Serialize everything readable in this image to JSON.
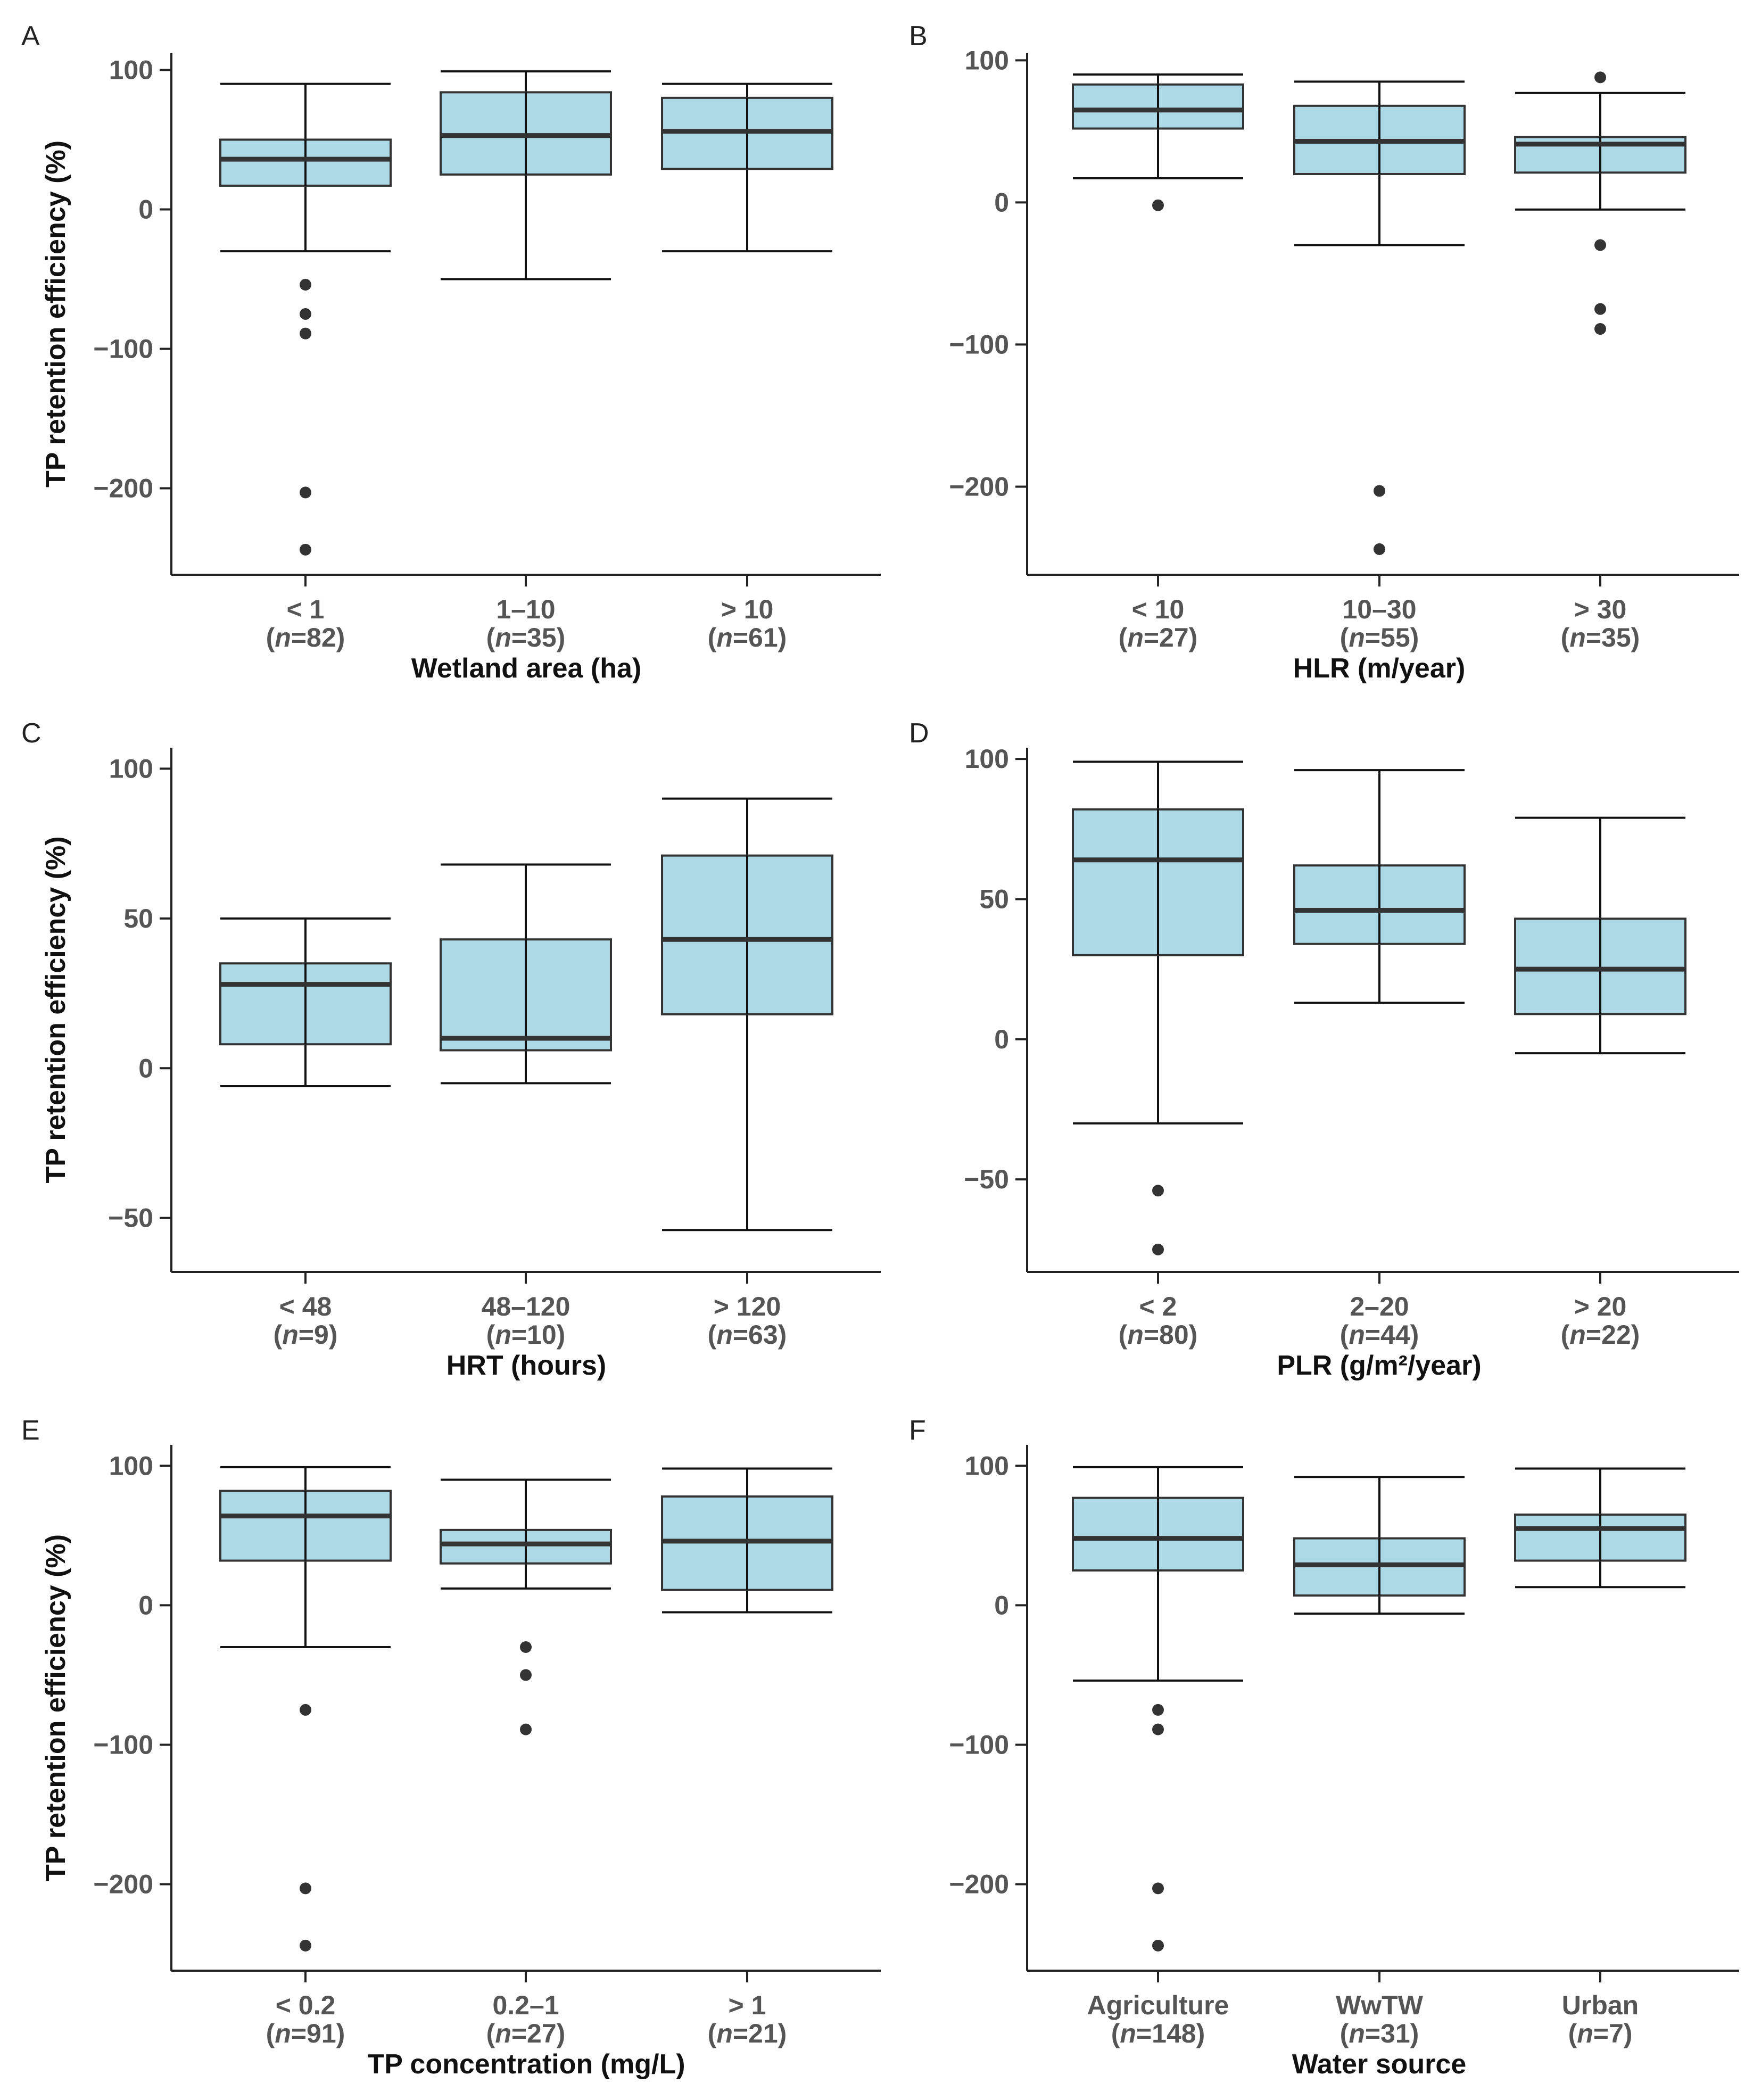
{
  "figure": {
    "y_axis_title": "TP retention efficiency (%)",
    "colors": {
      "box_fill": "#add8e6",
      "box_edge": "#333333",
      "point": "#333333"
    }
  },
  "chart_data": [
    {
      "panel": "A",
      "type": "box",
      "xlabel": "Wetland area (ha)",
      "ylabel": "TP retention efficiency (%)",
      "ylim": [
        -262,
        112
      ],
      "yticks": [
        100,
        0,
        -100,
        -200
      ],
      "categories": [
        {
          "label": "< 1",
          "n": "82",
          "whislo": -30,
          "q1": 17,
          "median": 36,
          "q3": 50,
          "whishi": 90,
          "fliers": [
            -54,
            -75,
            -89,
            -203,
            -244
          ]
        },
        {
          "label": "1–10",
          "n": "35",
          "whislo": -50,
          "q1": 25,
          "median": 53,
          "q3": 84,
          "whishi": 99,
          "fliers": []
        },
        {
          "label": "> 10",
          "n": "61",
          "whislo": -30,
          "q1": 29,
          "median": 56,
          "q3": 80,
          "whishi": 90,
          "fliers": []
        }
      ]
    },
    {
      "panel": "B",
      "type": "box",
      "xlabel": "HLR (m/year)",
      "ylabel": "",
      "ylim": [
        -262,
        105
      ],
      "yticks": [
        100,
        0,
        -100,
        -200
      ],
      "categories": [
        {
          "label": "< 10",
          "n": "27",
          "whislo": 17,
          "q1": 52,
          "median": 65,
          "q3": 83,
          "whishi": 90,
          "fliers": [
            -2
          ]
        },
        {
          "label": "10–30",
          "n": "55",
          "whislo": -30,
          "q1": 20,
          "median": 43,
          "q3": 68,
          "whishi": 85,
          "fliers": [
            -203,
            -244
          ]
        },
        {
          "label": "> 30",
          "n": "35",
          "whislo": -5,
          "q1": 21,
          "median": 41,
          "q3": 46,
          "whishi": 77,
          "fliers": [
            88,
            -30,
            -75,
            -89
          ]
        }
      ]
    },
    {
      "panel": "C",
      "type": "box",
      "xlabel": "HRT (hours)",
      "ylabel": "TP retention efficiency (%)",
      "ylim": [
        -68,
        107
      ],
      "yticks": [
        100,
        50,
        0,
        -50
      ],
      "categories": [
        {
          "label": "< 48",
          "n": "9",
          "whislo": -6,
          "q1": 8,
          "median": 28,
          "q3": 35,
          "whishi": 50,
          "fliers": []
        },
        {
          "label": "48–120",
          "n": "10",
          "whislo": -5,
          "q1": 6,
          "median": 10,
          "q3": 43,
          "whishi": 68,
          "fliers": []
        },
        {
          "label": "> 120",
          "n": "63",
          "whislo": -54,
          "q1": 18,
          "median": 43,
          "q3": 71,
          "whishi": 90,
          "fliers": []
        }
      ]
    },
    {
      "panel": "D",
      "type": "box",
      "xlabel": "PLR (g/m²/year)",
      "ylabel": "",
      "ylim": [
        -83,
        104
      ],
      "yticks": [
        100,
        50,
        0,
        -50
      ],
      "categories": [
        {
          "label": "< 2",
          "n": "80",
          "whislo": -30,
          "q1": 30,
          "median": 64,
          "q3": 82,
          "whishi": 99,
          "fliers": [
            -54,
            -75
          ]
        },
        {
          "label": "2–20",
          "n": "44",
          "whislo": 13,
          "q1": 34,
          "median": 46,
          "q3": 62,
          "whishi": 96,
          "fliers": []
        },
        {
          "label": "> 20",
          "n": "22",
          "whislo": -5,
          "q1": 9,
          "median": 25,
          "q3": 43,
          "whishi": 79,
          "fliers": []
        }
      ]
    },
    {
      "panel": "E",
      "type": "box",
      "xlabel": "TP concentration (mg/L)",
      "ylabel": "TP retention efficiency (%)",
      "ylim": [
        -262,
        115
      ],
      "yticks": [
        100,
        0,
        -100,
        -200
      ],
      "categories": [
        {
          "label": "< 0.2",
          "n": "91",
          "whislo": -30,
          "q1": 32,
          "median": 64,
          "q3": 82,
          "whishi": 99,
          "fliers": [
            -75,
            -203,
            -244
          ]
        },
        {
          "label": "0.2–1",
          "n": "27",
          "whislo": 12,
          "q1": 30,
          "median": 44,
          "q3": 54,
          "whishi": 90,
          "fliers": [
            -30,
            -50,
            -89
          ]
        },
        {
          "label": "> 1",
          "n": "21",
          "whislo": -5,
          "q1": 11,
          "median": 46,
          "q3": 78,
          "whishi": 98,
          "fliers": []
        }
      ]
    },
    {
      "panel": "F",
      "type": "box",
      "xlabel": "Water source",
      "ylabel": "",
      "ylim": [
        -262,
        115
      ],
      "yticks": [
        100,
        0,
        -100,
        -200
      ],
      "categories": [
        {
          "label": "Agriculture",
          "n": "148",
          "whislo": -54,
          "q1": 25,
          "median": 48,
          "q3": 77,
          "whishi": 99,
          "fliers": [
            -75,
            -89,
            -203,
            -244
          ]
        },
        {
          "label": "WwTW",
          "n": "31",
          "whislo": -6,
          "q1": 7,
          "median": 29,
          "q3": 48,
          "whishi": 92,
          "fliers": []
        },
        {
          "label": "Urban",
          "n": "7",
          "whislo": 13,
          "q1": 32,
          "median": 55,
          "q3": 65,
          "whishi": 98,
          "fliers": []
        }
      ]
    }
  ]
}
